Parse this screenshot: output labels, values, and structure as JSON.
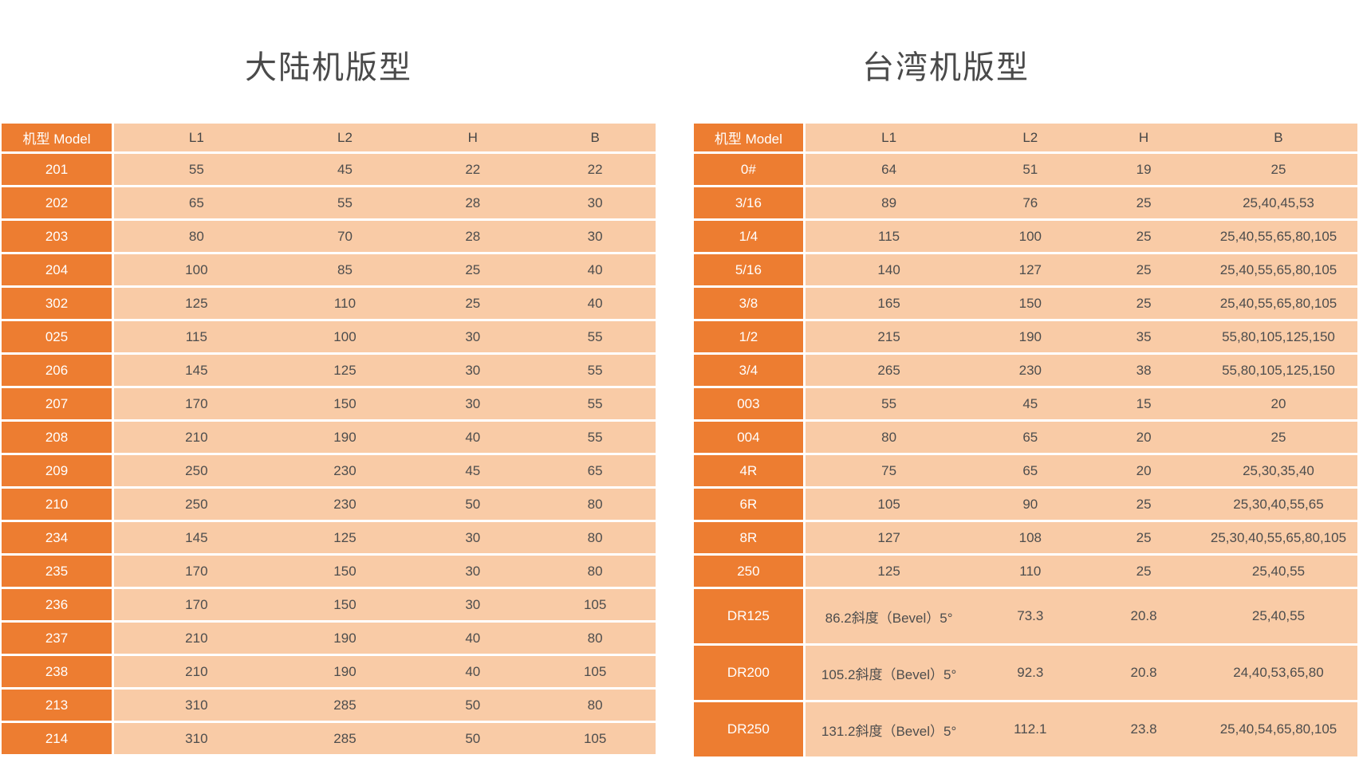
{
  "colors": {
    "accent_orange": "#ED7D31",
    "cell_peach": "#F9CBA6",
    "model_text": "#FFFFFF",
    "data_text": "#4D4D4D",
    "title_text": "#4A4A4A",
    "separator": "#FFFFFF"
  },
  "tables": [
    {
      "id": "mainland",
      "title": "大陆机版型",
      "columns": [
        "机型 Model",
        "L1",
        "L2",
        "H",
        "B"
      ],
      "rows": [
        [
          "201",
          "55",
          "45",
          "22",
          "22"
        ],
        [
          "202",
          "65",
          "55",
          "28",
          "30"
        ],
        [
          "203",
          "80",
          "70",
          "28",
          "30"
        ],
        [
          "204",
          "100",
          "85",
          "25",
          "40"
        ],
        [
          "302",
          "125",
          "110",
          "25",
          "40"
        ],
        [
          "025",
          "115",
          "100",
          "30",
          "55"
        ],
        [
          "206",
          "145",
          "125",
          "30",
          "55"
        ],
        [
          "207",
          "170",
          "150",
          "30",
          "55"
        ],
        [
          "208",
          "210",
          "190",
          "40",
          "55"
        ],
        [
          "209",
          "250",
          "230",
          "45",
          "65"
        ],
        [
          "210",
          "250",
          "230",
          "50",
          "80"
        ],
        [
          "234",
          "145",
          "125",
          "30",
          "80"
        ],
        [
          "235",
          "170",
          "150",
          "30",
          "80"
        ],
        [
          "236",
          "170",
          "150",
          "30",
          "105"
        ],
        [
          "237",
          "210",
          "190",
          "40",
          "80"
        ],
        [
          "238",
          "210",
          "190",
          "40",
          "105"
        ],
        [
          "213",
          "310",
          "285",
          "50",
          "80"
        ],
        [
          "214",
          "310",
          "285",
          "50",
          "105"
        ]
      ],
      "tall_rows": []
    },
    {
      "id": "taiwan",
      "title": "台湾机版型",
      "columns": [
        "机型 Model",
        "L1",
        "L2",
        "H",
        "B"
      ],
      "rows": [
        [
          "0#",
          "64",
          "51",
          "19",
          "25"
        ],
        [
          "3/16",
          "89",
          "76",
          "25",
          "25,40,45,53"
        ],
        [
          "1/4",
          "115",
          "100",
          "25",
          "25,40,55,65,80,105"
        ],
        [
          "5/16",
          "140",
          "127",
          "25",
          "25,40,55,65,80,105"
        ],
        [
          "3/8",
          "165",
          "150",
          "25",
          "25,40,55,65,80,105"
        ],
        [
          "1/2",
          "215",
          "190",
          "35",
          "55,80,105,125,150"
        ],
        [
          "3/4",
          "265",
          "230",
          "38",
          "55,80,105,125,150"
        ],
        [
          "003",
          "55",
          "45",
          "15",
          "20"
        ],
        [
          "004",
          "80",
          "65",
          "20",
          "25"
        ],
        [
          "4R",
          "75",
          "65",
          "20",
          "25,30,35,40"
        ],
        [
          "6R",
          "105",
          "90",
          "25",
          "25,30,40,55,65"
        ],
        [
          "8R",
          "127",
          "108",
          "25",
          "25,30,40,55,65,80,105"
        ],
        [
          "250",
          "125",
          "110",
          "25",
          "25,40,55"
        ],
        [
          "DR125",
          "86.2斜度（Bevel）5°",
          "73.3",
          "20.8",
          "25,40,55"
        ],
        [
          "DR200",
          "105.2斜度（Bevel）5°",
          "92.3",
          "20.8",
          "24,40,53,65,80"
        ],
        [
          "DR250",
          "131.2斜度（Bevel）5°",
          "112.1",
          "23.8",
          "25,40,54,65,80,105"
        ]
      ],
      "tall_rows": [
        "DR125",
        "DR200",
        "DR250"
      ]
    }
  ]
}
